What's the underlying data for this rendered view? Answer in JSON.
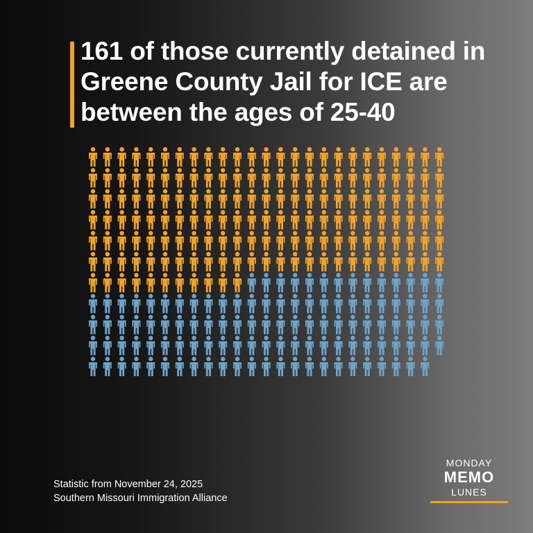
{
  "headline": "161 of those currently detained in Greene County Jail for ICE are between the ages of 25-40",
  "source": {
    "line1": "Statistic from November 24, 2025",
    "line2": "Southern Missouri Immigration Alliance"
  },
  "logo": {
    "top": "MONDAY",
    "middle": "MEMO",
    "bottom": "LUNES"
  },
  "colors": {
    "highlight": "#f0a22e",
    "rest": "#6fa3c7",
    "accent": "#f0a22e"
  },
  "chart_data": {
    "type": "pictograph",
    "unit": "person",
    "highlighted_count": 161,
    "other_count": 113,
    "total": 274
  }
}
